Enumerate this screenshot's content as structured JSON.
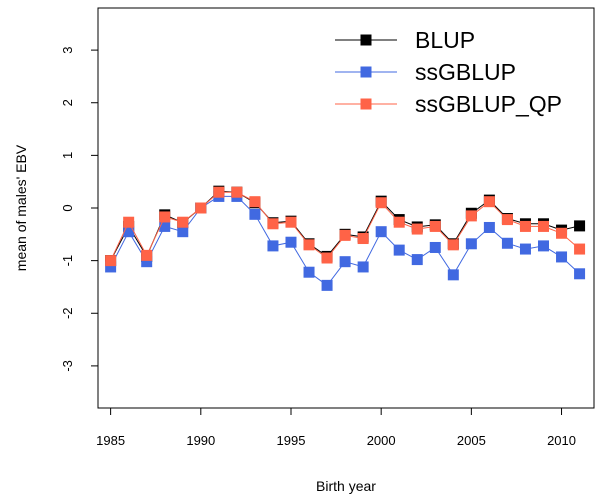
{
  "chart_data": {
    "type": "line",
    "title": "",
    "xlabel": "Birth year",
    "ylabel": "mean of males' EBV",
    "xlim": [
      1984.3,
      2011.8
    ],
    "ylim": [
      -3.8,
      3.8
    ],
    "xticks": [
      1985,
      1990,
      1995,
      2000,
      2005,
      2010
    ],
    "yticks": [
      -3,
      -2,
      -1,
      0,
      1,
      2,
      3
    ],
    "grid": false,
    "legend_position": "top-right",
    "x": [
      1985,
      1986,
      1987,
      1988,
      1989,
      1990,
      1991,
      1992,
      1993,
      1994,
      1995,
      1996,
      1997,
      1998,
      1999,
      2000,
      2001,
      2002,
      2003,
      2004,
      2005,
      2006,
      2007,
      2008,
      2009,
      2010,
      2011
    ],
    "series": [
      {
        "name": "BLUP",
        "color": "#000000",
        "marker": "square",
        "values": [
          -1.0,
          -0.35,
          -0.92,
          -0.13,
          -0.28,
          0.0,
          0.32,
          0.3,
          0.1,
          -0.28,
          -0.25,
          -0.68,
          -0.92,
          -0.5,
          -0.55,
          0.13,
          -0.22,
          -0.36,
          -0.32,
          -0.68,
          -0.1,
          0.15,
          -0.2,
          -0.3,
          -0.3,
          -0.42,
          -0.34
        ]
      },
      {
        "name": "ssGBLUP",
        "color": "#4169E1",
        "marker": "square",
        "values": [
          -1.12,
          -0.45,
          -1.02,
          -0.35,
          -0.45,
          0.0,
          0.22,
          0.22,
          -0.12,
          -0.72,
          -0.65,
          -1.22,
          -1.47,
          -1.02,
          -1.12,
          -0.45,
          -0.8,
          -0.98,
          -0.75,
          -1.27,
          -0.68,
          -0.37,
          -0.67,
          -0.78,
          -0.72,
          -0.93,
          -1.25
        ]
      },
      {
        "name": "ssGBLUP_QP",
        "color": "#FF6347",
        "marker": "square",
        "values": [
          -1.0,
          -0.27,
          -0.9,
          -0.17,
          -0.27,
          0.0,
          0.3,
          0.3,
          0.12,
          -0.3,
          -0.27,
          -0.7,
          -0.95,
          -0.52,
          -0.58,
          0.1,
          -0.27,
          -0.4,
          -0.35,
          -0.7,
          -0.15,
          0.12,
          -0.22,
          -0.35,
          -0.35,
          -0.48,
          -0.78
        ]
      }
    ]
  }
}
